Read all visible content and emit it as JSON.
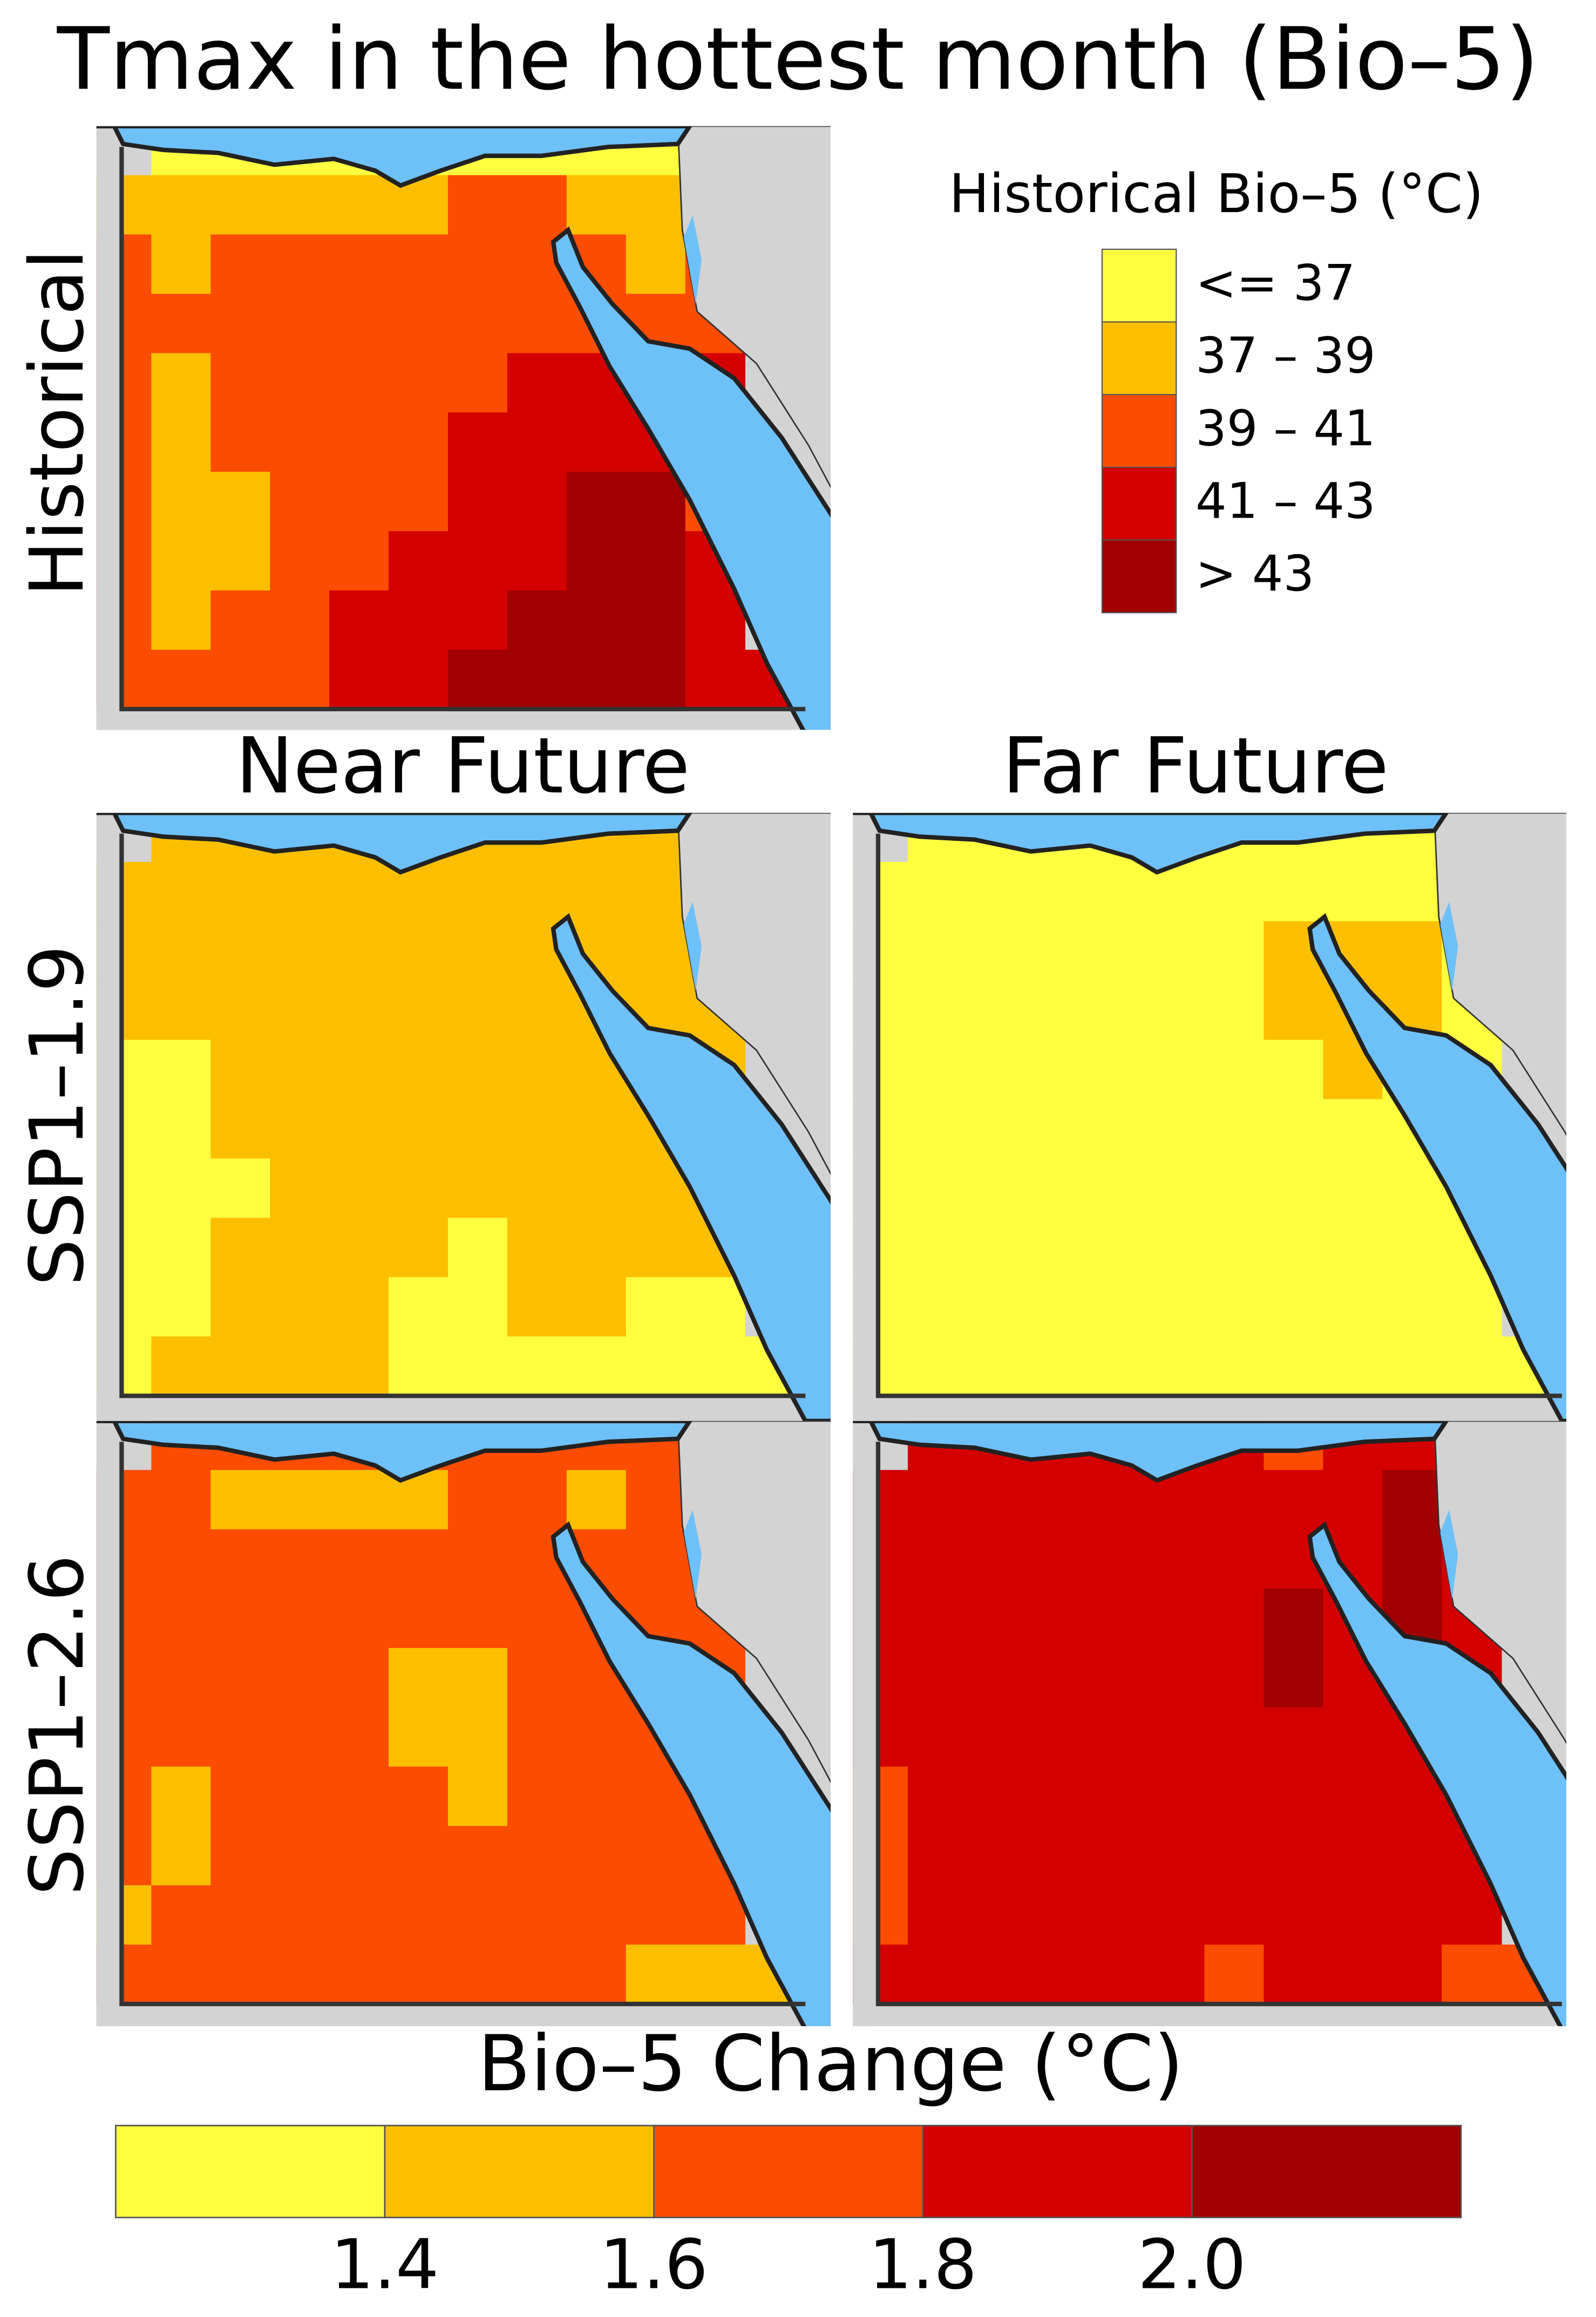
{
  "title": "Tmax in the hottest month (Bio–5)",
  "column_labels": [
    "Near Future",
    "Far Future"
  ],
  "row_labels": [
    "Historical",
    "SSP1–1.9",
    "SSP1–2.6"
  ],
  "legend": {
    "title": "Historical Bio–5 (°C)",
    "labels": [
      "<= 37",
      "37 – 39",
      "39 – 41",
      "41 – 43",
      "> 43"
    ],
    "colors": [
      "#ffff40",
      "#fcbf00",
      "#fc4c00",
      "#d40000",
      "#a00000"
    ]
  },
  "colorbar": {
    "title": "Bio–5 Change (°C)",
    "lim": [
      1.2,
      2.2
    ],
    "ticks": [
      1.4,
      1.6,
      1.8,
      {
        "value": 2,
        "label": "2.0"
      }
    ],
    "colors": [
      "#ffff40",
      "#fcbf00",
      "#fc4c00",
      "#d40000",
      "#a00000"
    ]
  },
  "maps": [
    {
      "grid": [
        [
          null,
          0,
          0,
          0,
          0,
          0,
          0,
          0,
          0,
          0,
          null,
          null
        ],
        [
          1,
          1,
          1,
          1,
          1,
          1,
          2,
          2,
          1,
          1,
          2,
          null
        ],
        [
          2,
          1,
          2,
          2,
          2,
          2,
          2,
          2,
          2,
          1,
          2,
          null
        ],
        [
          2,
          2,
          2,
          2,
          2,
          2,
          2,
          2,
          2,
          2,
          2,
          null
        ],
        [
          2,
          1,
          2,
          2,
          2,
          2,
          2,
          3,
          3,
          3,
          3,
          null
        ],
        [
          2,
          1,
          2,
          2,
          2,
          2,
          3,
          3,
          3,
          3,
          2,
          null
        ],
        [
          2,
          1,
          1,
          2,
          2,
          2,
          3,
          3,
          4,
          4,
          2,
          null
        ],
        [
          2,
          1,
          1,
          2,
          2,
          3,
          3,
          3,
          4,
          4,
          3,
          null
        ],
        [
          2,
          1,
          2,
          2,
          3,
          3,
          3,
          4,
          4,
          4,
          3,
          null
        ],
        [
          2,
          2,
          2,
          2,
          3,
          3,
          4,
          4,
          4,
          4,
          3,
          3
        ]
      ]
    },
    {
      "grid": [
        [
          null,
          1,
          1,
          1,
          1,
          1,
          1,
          1,
          1,
          1,
          null,
          null
        ],
        [
          1,
          1,
          1,
          1,
          1,
          1,
          1,
          1,
          1,
          1,
          2,
          null
        ],
        [
          1,
          1,
          1,
          1,
          1,
          1,
          1,
          1,
          1,
          1,
          1,
          null
        ],
        [
          1,
          1,
          1,
          1,
          1,
          1,
          1,
          1,
          1,
          1,
          1,
          null
        ],
        [
          0,
          0,
          1,
          1,
          1,
          1,
          1,
          1,
          1,
          1,
          1,
          null
        ],
        [
          0,
          0,
          1,
          1,
          1,
          1,
          1,
          1,
          1,
          1,
          1,
          null
        ],
        [
          0,
          0,
          0,
          1,
          1,
          1,
          1,
          1,
          1,
          1,
          1,
          null
        ],
        [
          0,
          0,
          1,
          1,
          1,
          1,
          0,
          1,
          1,
          1,
          1,
          null
        ],
        [
          0,
          0,
          1,
          1,
          1,
          0,
          0,
          1,
          1,
          0,
          0,
          null
        ],
        [
          0,
          1,
          1,
          1,
          1,
          0,
          0,
          0,
          0,
          0,
          0,
          0
        ]
      ]
    },
    {
      "grid": [
        [
          null,
          0,
          0,
          0,
          0,
          0,
          0,
          0,
          0,
          0,
          null,
          null
        ],
        [
          0,
          0,
          0,
          0,
          0,
          0,
          0,
          0,
          0,
          0,
          0,
          null
        ],
        [
          0,
          0,
          0,
          0,
          0,
          0,
          0,
          1,
          1,
          1,
          0,
          null
        ],
        [
          0,
          0,
          0,
          0,
          0,
          0,
          0,
          1,
          1,
          1,
          0,
          null
        ],
        [
          0,
          0,
          0,
          0,
          0,
          0,
          0,
          0,
          1,
          0,
          0,
          null
        ],
        [
          0,
          0,
          0,
          0,
          0,
          0,
          0,
          0,
          0,
          0,
          0,
          null
        ],
        [
          0,
          0,
          0,
          0,
          0,
          0,
          0,
          0,
          0,
          0,
          0,
          null
        ],
        [
          0,
          0,
          0,
          0,
          0,
          0,
          0,
          0,
          0,
          0,
          0,
          null
        ],
        [
          0,
          0,
          0,
          0,
          0,
          0,
          0,
          0,
          0,
          0,
          0,
          null
        ],
        [
          0,
          0,
          0,
          0,
          0,
          0,
          0,
          0,
          0,
          0,
          0,
          0
        ]
      ]
    },
    {
      "grid": [
        [
          null,
          2,
          2,
          2,
          2,
          2,
          2,
          2,
          2,
          2,
          null,
          null
        ],
        [
          2,
          2,
          1,
          1,
          1,
          1,
          2,
          2,
          1,
          2,
          2,
          null
        ],
        [
          2,
          2,
          2,
          2,
          2,
          2,
          2,
          2,
          2,
          2,
          2,
          null
        ],
        [
          2,
          2,
          2,
          2,
          2,
          2,
          2,
          2,
          2,
          2,
          2,
          null
        ],
        [
          2,
          2,
          2,
          2,
          2,
          1,
          1,
          2,
          2,
          2,
          2,
          null
        ],
        [
          2,
          2,
          2,
          2,
          2,
          1,
          1,
          2,
          2,
          2,
          2,
          null
        ],
        [
          2,
          1,
          2,
          2,
          2,
          2,
          1,
          2,
          2,
          2,
          2,
          null
        ],
        [
          2,
          1,
          2,
          2,
          2,
          2,
          2,
          2,
          2,
          2,
          2,
          null
        ],
        [
          1,
          2,
          2,
          2,
          2,
          2,
          2,
          2,
          2,
          2,
          2,
          null
        ],
        [
          2,
          2,
          2,
          2,
          2,
          2,
          2,
          2,
          2,
          1,
          1,
          1
        ]
      ]
    },
    {
      "grid": [
        [
          null,
          3,
          3,
          3,
          3,
          3,
          3,
          2,
          3,
          3,
          null,
          null
        ],
        [
          3,
          3,
          3,
          3,
          3,
          3,
          3,
          3,
          3,
          4,
          3,
          null
        ],
        [
          3,
          3,
          3,
          3,
          3,
          3,
          3,
          3,
          3,
          4,
          3,
          null
        ],
        [
          3,
          3,
          3,
          3,
          3,
          3,
          3,
          4,
          3,
          4,
          3,
          null
        ],
        [
          3,
          3,
          3,
          3,
          3,
          3,
          3,
          4,
          3,
          3,
          3,
          null
        ],
        [
          3,
          3,
          3,
          3,
          3,
          3,
          3,
          3,
          3,
          3,
          3,
          null
        ],
        [
          2,
          3,
          3,
          3,
          3,
          3,
          3,
          3,
          3,
          3,
          3,
          null
        ],
        [
          2,
          3,
          3,
          3,
          3,
          3,
          3,
          3,
          3,
          3,
          3,
          null
        ],
        [
          2,
          3,
          3,
          3,
          3,
          3,
          3,
          3,
          3,
          3,
          3,
          null
        ],
        [
          3,
          3,
          3,
          3,
          3,
          3,
          2,
          3,
          3,
          3,
          2,
          2
        ]
      ]
    }
  ]
}
